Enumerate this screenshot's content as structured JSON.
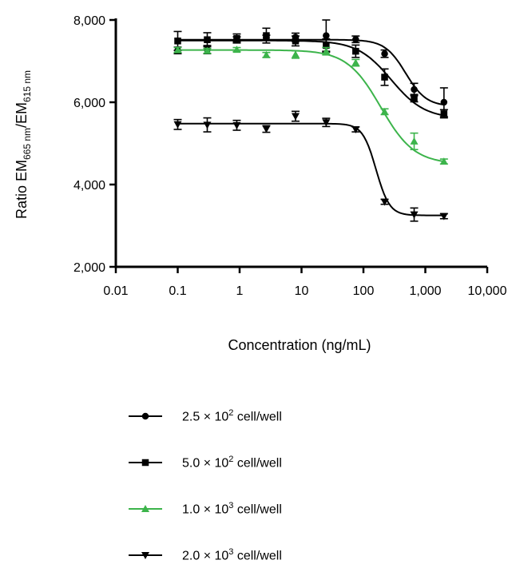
{
  "chart_data": {
    "type": "scatter",
    "xlabel": "Concentration (ng/mL)",
    "ylabel": {
      "prefix": "Ratio EM",
      "sub1": "665 nm",
      "mid": "/EM",
      "sub2": "615 nm"
    },
    "x_scale": "log",
    "xlim": [
      0.01,
      10000
    ],
    "ylim": [
      2000,
      8000
    ],
    "x_ticks": [
      0.01,
      0.1,
      1,
      10,
      100,
      1000,
      10000
    ],
    "x_tick_labels": [
      "0.01",
      "0.1",
      "1",
      "10",
      "100",
      "1,000",
      "10,000"
    ],
    "y_ticks": [
      2000,
      4000,
      6000,
      8000
    ],
    "y_tick_labels": [
      "2,000",
      "4,000",
      "6,000",
      "8,000"
    ],
    "legend_position": "bottom",
    "series": [
      {
        "name": "2.5 × 10² cell/well",
        "label_parts": [
          "2.5 × 10",
          "2",
          " cell/well"
        ],
        "color": "#000000",
        "marker": "circle",
        "x": [
          0.1,
          0.3,
          0.9,
          2.7,
          8,
          25,
          75,
          220,
          660,
          2000
        ],
        "y": [
          7260,
          7280,
          7530,
          7570,
          7580,
          7620,
          7530,
          7180,
          6310,
          6000
        ],
        "err": [
          80,
          100,
          60,
          60,
          100,
          380,
          80,
          90,
          150,
          350
        ],
        "fit": {
          "top": 7520,
          "bottom": 5900,
          "ec50": 480,
          "hill": 2.6
        }
      },
      {
        "name": "5.0 × 10² cell/well",
        "label_parts": [
          "5.0 × 10",
          "2",
          " cell/well"
        ],
        "color": "#000000",
        "marker": "square",
        "x": [
          0.1,
          0.3,
          0.9,
          2.7,
          8,
          25,
          75,
          220,
          660,
          2000
        ],
        "y": [
          7490,
          7520,
          7550,
          7620,
          7490,
          7380,
          7240,
          6610,
          6100,
          5720
        ],
        "err": [
          230,
          170,
          110,
          180,
          120,
          160,
          150,
          200,
          90,
          100
        ],
        "fit": {
          "top": 7500,
          "bottom": 5600,
          "ec50": 280,
          "hill": 1.6
        }
      },
      {
        "name": "1.0 × 10³ cell/well",
        "label_parts": [
          "1.0 × 10",
          "3",
          " cell/well"
        ],
        "color": "#3cb44b",
        "marker": "triangle-up",
        "x": [
          0.1,
          0.3,
          0.9,
          2.7,
          8,
          25,
          75,
          220,
          660,
          2000
        ],
        "y": [
          7270,
          7250,
          7280,
          7150,
          7160,
          7240,
          6960,
          5770,
          5050,
          4560
        ],
        "err": [
          60,
          60,
          50,
          60,
          90,
          90,
          80,
          70,
          200,
          60
        ],
        "fit": {
          "top": 7270,
          "bottom": 4500,
          "ec50": 190,
          "hill": 1.6
        }
      },
      {
        "name": "2.0 × 10³ cell/well",
        "label_parts": [
          "2.0 × 10",
          "3",
          " cell/well"
        ],
        "color": "#000000",
        "marker": "triangle-down",
        "x": [
          0.1,
          0.3,
          0.9,
          2.7,
          8,
          25,
          75,
          220,
          660,
          2000
        ],
        "y": [
          5460,
          5450,
          5440,
          5350,
          5660,
          5510,
          5340,
          3580,
          3270,
          3230
        ],
        "err": [
          120,
          170,
          120,
          80,
          120,
          100,
          60,
          60,
          160,
          60
        ],
        "fit": {
          "top": 5480,
          "bottom": 3250,
          "ec50": 160,
          "hill": 4.0
        }
      }
    ]
  }
}
